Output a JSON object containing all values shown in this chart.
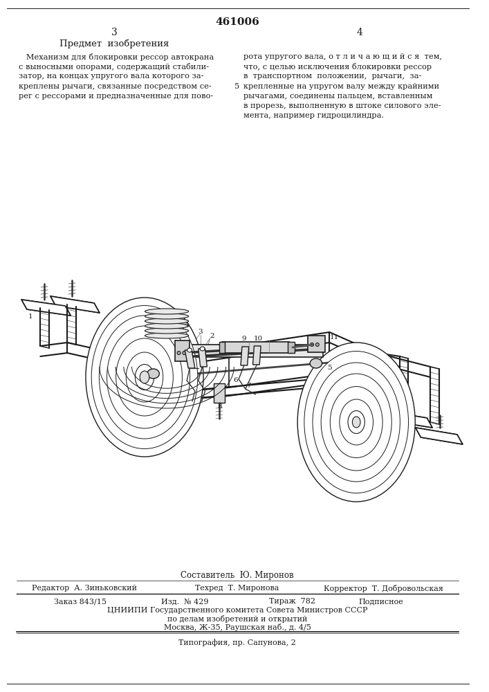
{
  "page_number_center": "461006",
  "page_num_left": "3",
  "page_num_right": "4",
  "section_title": "Предмет  изобретения",
  "left_text_lines": [
    "   Механизм для блокировки рессор автокрана",
    "с выносными опорами, содержащий стабили-",
    "затор, на концах упругого вала которого за-",
    "креплены рычаги, связанные посредством се-",
    "рег с рессорами и предназначенные для пово-"
  ],
  "right_text_lines": [
    "рота упругого вала, о т л и ч а ю щ и й с я  тем,",
    "что, с целью исключения блокировки рессор",
    "в  транспортном  положении,  рычаги,  за-",
    "крепленные на упругом валу между крайними",
    "рычагами, соединены пальцем, вставленным",
    "в прорезь, выполненную в штоке силового эле-",
    "мента, например гидроцилиндра."
  ],
  "line_number_right": "5",
  "compiler_line": "Составитель  Ю. Миронов",
  "editor_col1": "Редактор  А. Зиньковский",
  "editor_col2": "Техред  Т. Миронова",
  "editor_col3": "Корректор  Т. Добровольская",
  "order_col1": "Заказ 843/15",
  "order_col2": "Изд.  № 429",
  "order_col3": "Тираж  782",
  "order_col4": "Подписное",
  "org_line1": "ЦНИИПИ Государственного комитета Совета Министров СССР",
  "org_line2": "по делам изобретений и открытий",
  "org_line3": "Москва, Ж-35, Раушская наб., д. 4/5",
  "print_line": "Типография, пр. Сапунова, 2",
  "bg_color": "#ffffff",
  "text_color": "#1a1a1a",
  "line_color": "#1a1a1a",
  "draw_color": "#1a1a1a"
}
